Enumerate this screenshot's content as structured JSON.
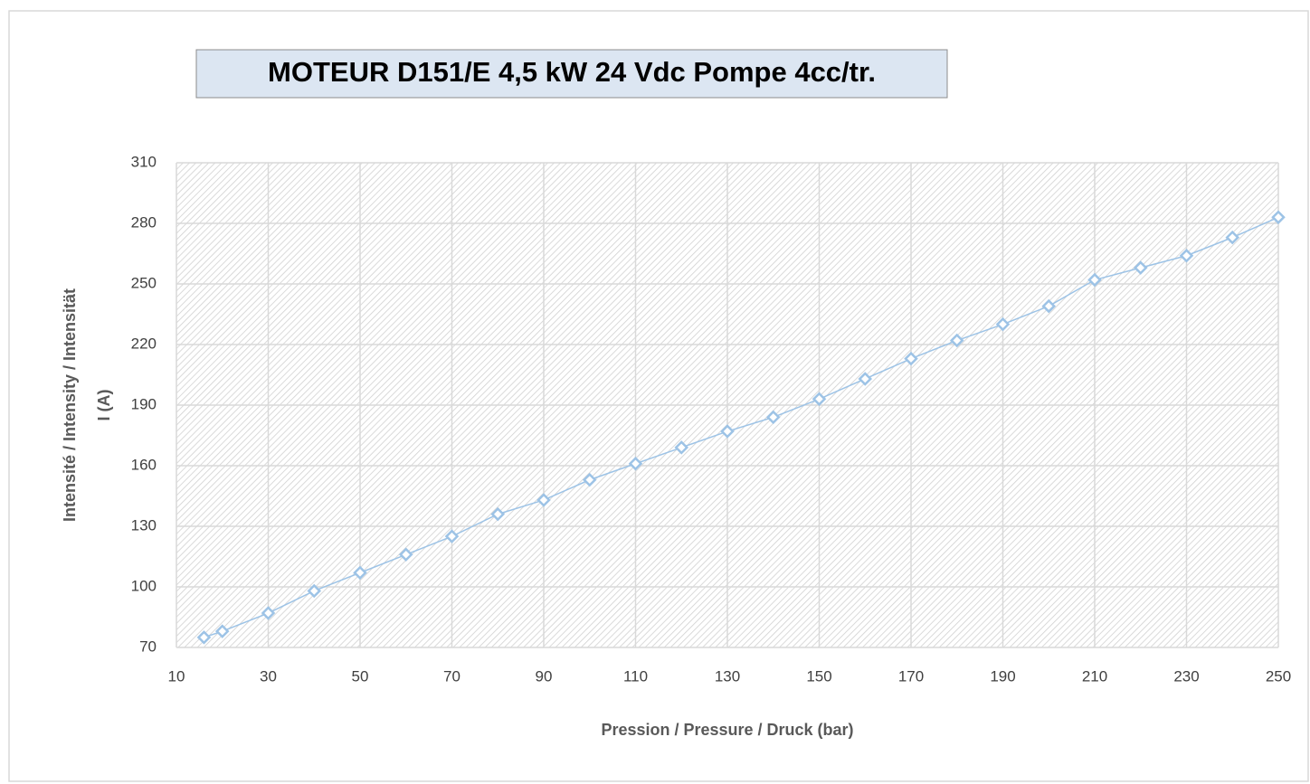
{
  "chart_data": {
    "type": "line",
    "title": "MOTEUR D151/E 4,5 kW 24 Vdc Pompe 4cc/tr.",
    "xlabel": "Pression / Pressure / Druck (bar)",
    "ylabel": [
      "Intensité / Intensity / Intensität",
      "I (A)"
    ],
    "x": [
      16,
      20,
      30,
      40,
      50,
      60,
      70,
      80,
      90,
      100,
      110,
      120,
      130,
      140,
      150,
      160,
      170,
      180,
      190,
      200,
      210,
      220,
      230,
      240,
      250
    ],
    "series": [
      {
        "color": "#9dc3e6",
        "values": [
          75,
          78,
          87,
          98,
          107,
          116,
          125,
          136,
          143,
          153,
          161,
          169,
          177,
          184,
          193,
          203,
          213,
          222,
          230,
          239,
          252,
          258,
          264,
          273,
          283
        ]
      }
    ],
    "xlim": [
      10,
      250
    ],
    "xticks": [
      10,
      30,
      50,
      70,
      90,
      110,
      130,
      150,
      170,
      190,
      210,
      230,
      250
    ],
    "ylim": [
      70,
      310
    ],
    "yticks": [
      70,
      100,
      130,
      160,
      190,
      220,
      250,
      280,
      310
    ],
    "grid": true
  }
}
